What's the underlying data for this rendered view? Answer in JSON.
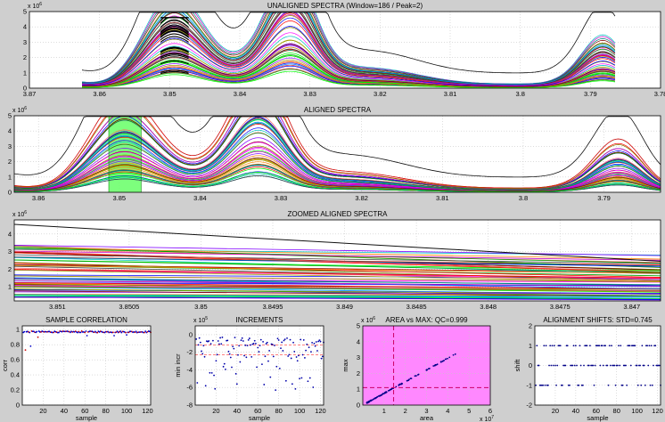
{
  "chart_data": [
    {
      "id": "unaligned",
      "type": "line",
      "title": "UNALIGNED SPECTRA (Window=186 / Peak=2)",
      "xlabel": "",
      "ylabel": "",
      "xlim": [
        3.87,
        3.78
      ],
      "x_reversed": true,
      "ylim": [
        0,
        5
      ],
      "y_multiplier": "x 10^6",
      "x_ticks": [
        "3.87",
        "3.86",
        "3.85",
        "3.84",
        "3.83",
        "3.82",
        "3.81",
        "3.8",
        "3.79",
        "3.78"
      ],
      "y_ticks": [
        "0",
        "1",
        "2",
        "3",
        "4",
        "5"
      ],
      "grid": true,
      "highlight_window": [
        3.8513,
        3.8473
      ],
      "highlight_style": "black thick traces inside window"
    },
    {
      "id": "aligned",
      "type": "line",
      "title": "ALIGNED SPECTRA",
      "xlabel": "",
      "ylabel": "",
      "xlim": [
        3.863,
        3.783
      ],
      "x_reversed": true,
      "ylim": [
        0,
        5
      ],
      "y_multiplier": "x 10^6",
      "x_ticks": [
        "3.86",
        "3.85",
        "3.84",
        "3.83",
        "3.82",
        "3.81",
        "3.8",
        "3.79"
      ],
      "y_ticks": [
        "0",
        "1",
        "2",
        "3",
        "4",
        "5"
      ],
      "grid": true,
      "highlight_window": [
        3.8513,
        3.8473
      ],
      "highlight_color": "#66ff66"
    },
    {
      "id": "zoomed",
      "type": "line",
      "title": "ZOOMED ALIGNED SPECTRA",
      "xlabel": "",
      "ylabel": "",
      "xlim": [
        3.8513,
        3.8468
      ],
      "x_reversed": true,
      "ylim": [
        0.2,
        4.8
      ],
      "y_multiplier": "x 10^6",
      "x_ticks": [
        "3.851",
        "3.8505",
        "3.85",
        "3.8495",
        "3.849",
        "3.8485",
        "3.848",
        "3.8475",
        "3.847"
      ],
      "y_ticks": [
        "1",
        "2",
        "3",
        "4"
      ],
      "grid": true
    },
    {
      "id": "correlation",
      "type": "scatter",
      "title": "SAMPLE CORRELATION",
      "xlabel": "sample",
      "ylabel": "corr",
      "xlim": [
        0,
        123
      ],
      "ylim": [
        0,
        1.05
      ],
      "x_ticks": [
        "20",
        "40",
        "60",
        "80",
        "100",
        "120"
      ],
      "y_ticks": [
        "0",
        "0.2",
        "0.4",
        "0.6",
        "0.8",
        "1"
      ],
      "grid": true,
      "n_samples": 123,
      "typical_value": 0.97,
      "outliers": [
        [
          3,
          0.73
        ],
        [
          8,
          0.78
        ],
        [
          15,
          0.9
        ],
        [
          62,
          0.92
        ],
        [
          88,
          0.92
        ],
        [
          100,
          0.93
        ]
      ]
    },
    {
      "id": "increments",
      "type": "scatter",
      "title": "INCREMENTS",
      "xlabel": "sample",
      "ylabel": "min incr",
      "y_multiplier": "x 10^5",
      "xlim": [
        0,
        123
      ],
      "ylim": [
        -8,
        1
      ],
      "x_ticks": [
        "20",
        "40",
        "60",
        "80",
        "100",
        "120"
      ],
      "y_ticks": [
        "0",
        "-2",
        "-4",
        "-6",
        "-8"
      ],
      "grid": true,
      "reference_lines": [
        -1.2,
        -2.3
      ]
    },
    {
      "id": "area_vs_max",
      "type": "scatter",
      "title": "AREA vs MAX: QC=0.999",
      "xlabel": "area",
      "ylabel": "max",
      "x_multiplier": "x 10^7",
      "y_multiplier": "x 10^6",
      "xlim": [
        0,
        6
      ],
      "ylim": [
        0,
        5
      ],
      "x_ticks": [
        "1",
        "2",
        "3",
        "4",
        "5",
        "6"
      ],
      "y_ticks": [
        "0",
        "1",
        "2",
        "3",
        "4",
        "5"
      ],
      "grid": true,
      "background": "#ff88ff",
      "threshold_x": 1.45,
      "threshold_y": 1.1,
      "trend": {
        "x": [
          0.2,
          4.6
        ],
        "y": [
          0.15,
          3.4
        ]
      }
    },
    {
      "id": "shifts",
      "type": "scatter",
      "title": "ALIGNMENT SHIFTS: STD=0.745",
      "xlabel": "sample",
      "ylabel": "shift",
      "xlim": [
        0,
        123
      ],
      "ylim": [
        -2,
        2
      ],
      "x_ticks": [
        "20",
        "40",
        "60",
        "80",
        "100",
        "120"
      ],
      "y_ticks": [
        "-2",
        "-1",
        "0",
        "1",
        "2"
      ],
      "grid": true,
      "levels": [
        -1,
        0,
        1
      ]
    }
  ]
}
